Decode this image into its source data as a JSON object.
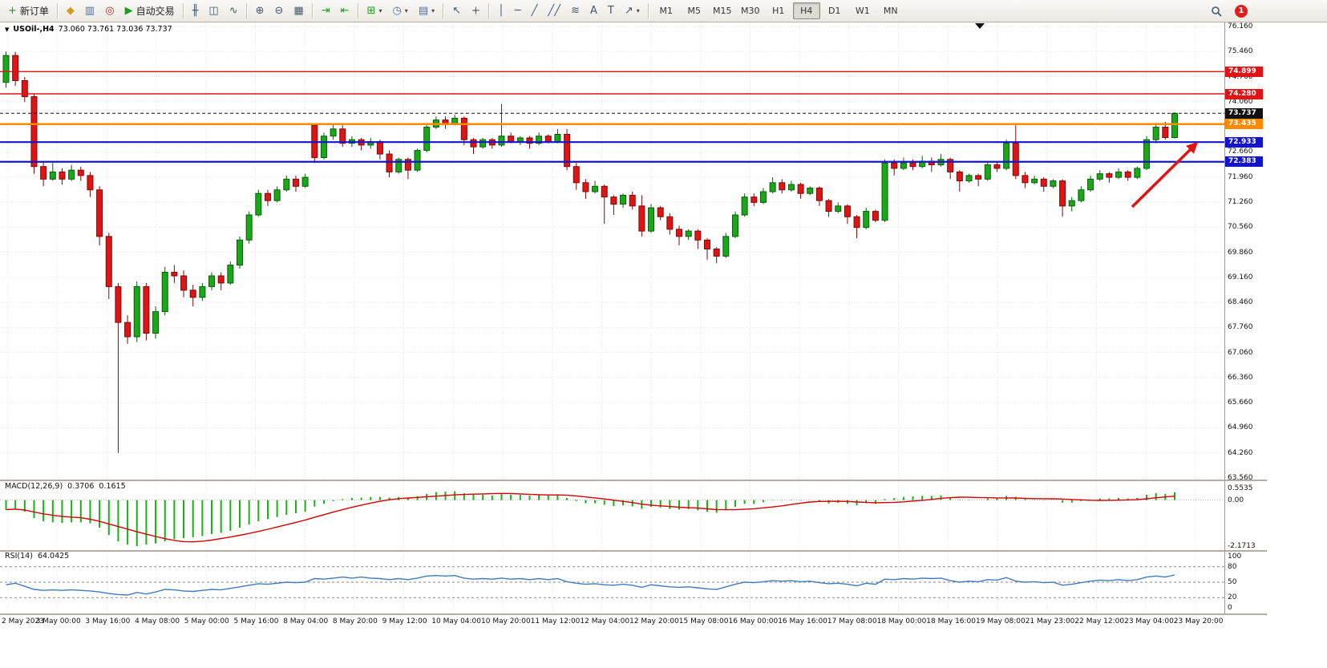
{
  "toolbar": {
    "groups": [
      {
        "items": [
          {
            "name": "new-order-button",
            "glyph": "+",
            "glyph_color": "#1f9d1f",
            "label": "新订单"
          }
        ]
      },
      {
        "items": [
          {
            "name": "market-watch-button",
            "glyph": "◆",
            "glyph_color": "#d49a1a"
          },
          {
            "name": "data-window-button",
            "glyph": "▥",
            "glyph_color": "#4a6fa5"
          },
          {
            "name": "signals-button",
            "glyph": "◎",
            "glyph_color": "#b03030"
          },
          {
            "name": "autotrading-button",
            "glyph": "▶",
            "glyph_color": "#1f9d1f",
            "label": "自动交易"
          }
        ]
      },
      {
        "items": [
          {
            "name": "ohlc-bars-button",
            "glyph": "╫"
          },
          {
            "name": "candlestick-button",
            "glyph": "◫"
          },
          {
            "name": "line-chart-button",
            "glyph": "∿"
          }
        ]
      },
      {
        "items": [
          {
            "name": "zoom-in-button",
            "glyph": "⊕"
          },
          {
            "name": "zoom-out-button",
            "glyph": "⊖"
          },
          {
            "name": "tile-windows-button",
            "glyph": "▦"
          }
        ]
      },
      {
        "items": [
          {
            "name": "auto-scroll-button",
            "glyph": "⇥",
            "glyph_color": "#1f9d1f"
          },
          {
            "name": "chart-shift-button",
            "glyph": "⇤",
            "glyph_color": "#1f9d1f"
          }
        ]
      },
      {
        "items": [
          {
            "name": "indicators-button",
            "glyph": "⊞",
            "glyph_color": "#1f9d1f",
            "caret": "▾"
          },
          {
            "name": "periods-button",
            "glyph": "◷",
            "glyph_color": "#4a6fa5",
            "caret": "▾"
          },
          {
            "name": "templates-button",
            "glyph": "▤",
            "glyph_color": "#4a6fa5",
            "caret": "▾"
          }
        ]
      },
      {
        "items": [
          {
            "name": "cursor-button",
            "glyph": "↖"
          },
          {
            "name": "crosshair-button",
            "glyph": "+"
          }
        ]
      },
      {
        "items": [
          {
            "name": "vertical-line-button",
            "glyph": "│"
          },
          {
            "name": "horizontal-line-button",
            "glyph": "─"
          },
          {
            "name": "trendline-button",
            "glyph": "╱"
          },
          {
            "name": "channel-button",
            "glyph": "╱╱"
          },
          {
            "name": "fibonacci-button",
            "glyph": "≋"
          },
          {
            "name": "text-button",
            "glyph": "A"
          },
          {
            "name": "label-button",
            "glyph": "T"
          },
          {
            "name": "shapes-button",
            "glyph": "↗",
            "caret": "▾"
          }
        ]
      }
    ],
    "timeframes": [
      "M1",
      "M5",
      "M15",
      "M30",
      "H1",
      "H4",
      "D1",
      "W1",
      "MN"
    ],
    "active_timeframe": "H4",
    "notification_count": "1"
  },
  "chart": {
    "expander_glyph": "▼",
    "symbol_header": "USOil-,H4",
    "ohlc_readout": "73.060 73.761 73.036 73.737",
    "price_axis": [
      "76.160",
      "75.460",
      "74.760",
      "74.060",
      "73.360",
      "72.660",
      "71.960",
      "71.260",
      "70.560",
      "69.860",
      "69.160",
      "68.460",
      "67.760",
      "67.060",
      "66.360",
      "65.660",
      "64.960",
      "64.260",
      "63.560"
    ],
    "time_axis": [
      "2 May 2023",
      "3 May 00:00",
      "3 May 16:00",
      "4 May 08:00",
      "5 May 00:00",
      "5 May 16:00",
      "8 May 04:00",
      "8 May 20:00",
      "9 May 12:00",
      "10 May 04:00",
      "10 May 20:00",
      "11 May 12:00",
      "12 May 04:00",
      "12 May 20:00",
      "15 May 08:00",
      "16 May 00:00",
      "16 May 16:00",
      "17 May 08:00",
      "18 May 00:00",
      "18 May 16:00",
      "19 May 08:00",
      "21 May 23:00",
      "22 May 12:00",
      "23 May 04:00",
      "23 May 20:00"
    ],
    "levels": [
      {
        "name": "resistance-line-74899",
        "label": "74.899",
        "value": 74.899,
        "color": "#e01414",
        "width": 1.4,
        "style": "solid"
      },
      {
        "name": "resistance-line-74280",
        "label": "74.280",
        "value": 74.28,
        "color": "#e01414",
        "width": 1.4,
        "style": "solid"
      },
      {
        "name": "bid-price-line",
        "label": "73.737",
        "value": 73.737,
        "color": "#111111",
        "width": 1,
        "style": "dash"
      },
      {
        "name": "pivot-line-73435",
        "label": "73.435",
        "value": 73.435,
        "color": "#ff8a00",
        "width": 2.4,
        "style": "solid"
      },
      {
        "name": "support-line-72933",
        "label": "72.933",
        "value": 72.933,
        "color": "#1414cc",
        "width": 2.2,
        "style": "solid"
      },
      {
        "name": "support-line-72383",
        "label": "72.383",
        "value": 72.383,
        "color": "#1414cc",
        "width": 2.2,
        "style": "solid"
      }
    ]
  },
  "macd": {
    "label": "MACD(12,26,9)",
    "value_main": "0.3706",
    "value_signal": "0.1615",
    "axis": [
      "0.5535",
      "0.00",
      "-2.1713"
    ],
    "axis_values": [
      0.5535,
      0,
      -2.1713
    ]
  },
  "rsi": {
    "label": "RSI(14)",
    "value": "64.0425",
    "axis": [
      "100",
      "80",
      "50",
      "20",
      "0"
    ],
    "axis_values": [
      100,
      80,
      50,
      20,
      0
    ],
    "levels": [
      80,
      50,
      20
    ]
  },
  "colors": {
    "bull": "#18a818",
    "bear": "#e01414",
    "bull_border": "#0b5e0b",
    "bear_border": "#7e0a0a",
    "grid": "#e4e4e4",
    "macd_hist": "#16b216",
    "macd_signal": "#d40000",
    "rsi_line": "#3f7cbe",
    "arrow": "#e01414",
    "axis_border": "#9a9a9a"
  },
  "chart_data": {
    "type": "candlestick",
    "symbol": "USOil",
    "timeframe": "H4",
    "title": "USOil-,H4",
    "current_bar": {
      "open": 73.06,
      "high": 73.761,
      "low": 73.036,
      "close": 73.737
    },
    "ylim": [
      63.56,
      76.16
    ],
    "candles": [
      [
        74.6,
        75.46,
        74.45,
        75.35
      ],
      [
        75.35,
        75.45,
        74.5,
        74.65
      ],
      [
        74.65,
        74.75,
        74.05,
        74.2
      ],
      [
        74.2,
        74.3,
        72.05,
        72.25
      ],
      [
        72.25,
        72.4,
        71.7,
        71.9
      ],
      [
        71.9,
        72.35,
        71.85,
        72.1
      ],
      [
        72.1,
        72.2,
        71.75,
        71.9
      ],
      [
        71.9,
        72.3,
        71.85,
        72.15
      ],
      [
        72.15,
        72.25,
        71.85,
        72.0
      ],
      [
        72.0,
        72.1,
        71.4,
        71.6
      ],
      [
        71.6,
        71.7,
        70.05,
        70.3
      ],
      [
        70.3,
        70.4,
        68.55,
        68.9
      ],
      [
        68.9,
        69.0,
        64.26,
        67.9
      ],
      [
        67.9,
        68.1,
        67.3,
        67.5
      ],
      [
        67.5,
        69.05,
        67.35,
        68.9
      ],
      [
        68.9,
        69.0,
        67.4,
        67.6
      ],
      [
        67.6,
        68.35,
        67.45,
        68.2
      ],
      [
        68.2,
        69.45,
        68.1,
        69.3
      ],
      [
        69.3,
        69.5,
        69.0,
        69.2
      ],
      [
        69.2,
        69.35,
        68.6,
        68.8
      ],
      [
        68.8,
        68.95,
        68.35,
        68.6
      ],
      [
        68.6,
        69.0,
        68.5,
        68.9
      ],
      [
        68.9,
        69.3,
        68.8,
        69.2
      ],
      [
        69.2,
        69.3,
        68.8,
        69.0
      ],
      [
        69.0,
        69.6,
        68.95,
        69.5
      ],
      [
        69.5,
        70.3,
        69.4,
        70.2
      ],
      [
        70.2,
        71.0,
        70.1,
        70.9
      ],
      [
        70.9,
        71.6,
        70.85,
        71.5
      ],
      [
        71.5,
        71.6,
        71.15,
        71.3
      ],
      [
        71.3,
        71.7,
        71.25,
        71.6
      ],
      [
        71.6,
        72.0,
        71.55,
        71.9
      ],
      [
        71.9,
        72.0,
        71.55,
        71.7
      ],
      [
        71.7,
        72.05,
        71.65,
        71.95
      ],
      [
        73.4,
        73.45,
        72.35,
        72.5
      ],
      [
        72.5,
        73.2,
        72.45,
        73.1
      ],
      [
        73.1,
        73.45,
        73.0,
        73.3
      ],
      [
        73.3,
        73.4,
        72.8,
        72.9
      ],
      [
        72.9,
        73.1,
        72.8,
        73.0
      ],
      [
        73.0,
        73.05,
        72.7,
        72.85
      ],
      [
        72.85,
        73.05,
        72.75,
        72.95
      ],
      [
        72.95,
        73.0,
        72.45,
        72.6
      ],
      [
        72.6,
        72.7,
        71.95,
        72.1
      ],
      [
        72.1,
        72.5,
        72.05,
        72.45
      ],
      [
        72.45,
        72.5,
        71.9,
        72.15
      ],
      [
        72.15,
        72.75,
        72.1,
        72.7
      ],
      [
        72.7,
        73.45,
        72.65,
        73.35
      ],
      [
        73.35,
        73.65,
        73.3,
        73.55
      ],
      [
        73.55,
        73.65,
        73.3,
        73.45
      ],
      [
        73.45,
        73.7,
        73.4,
        73.6
      ],
      [
        73.6,
        73.65,
        72.85,
        73.0
      ],
      [
        73.0,
        73.05,
        72.6,
        72.8
      ],
      [
        72.8,
        73.05,
        72.75,
        73.0
      ],
      [
        73.0,
        73.05,
        72.75,
        72.85
      ],
      [
        72.85,
        74.0,
        72.8,
        73.1
      ],
      [
        73.1,
        73.2,
        72.9,
        72.95
      ],
      [
        72.95,
        73.1,
        72.85,
        73.05
      ],
      [
        73.05,
        73.1,
        72.75,
        72.9
      ],
      [
        72.9,
        73.2,
        72.85,
        73.1
      ],
      [
        73.1,
        73.15,
        72.9,
        72.95
      ],
      [
        72.95,
        73.3,
        72.9,
        73.15
      ],
      [
        73.15,
        73.3,
        72.15,
        72.25
      ],
      [
        72.25,
        72.35,
        71.6,
        71.8
      ],
      [
        71.8,
        71.9,
        71.35,
        71.55
      ],
      [
        71.55,
        71.85,
        71.5,
        71.7
      ],
      [
        71.7,
        71.75,
        70.65,
        71.4
      ],
      [
        71.4,
        71.45,
        70.9,
        71.2
      ],
      [
        71.2,
        71.5,
        71.1,
        71.45
      ],
      [
        71.45,
        71.55,
        71.05,
        71.15
      ],
      [
        71.15,
        71.45,
        70.3,
        70.45
      ],
      [
        70.45,
        71.2,
        70.4,
        71.1
      ],
      [
        71.1,
        71.15,
        70.75,
        70.85
      ],
      [
        70.85,
        70.95,
        70.35,
        70.5
      ],
      [
        70.5,
        70.6,
        70.05,
        70.3
      ],
      [
        70.3,
        70.5,
        70.2,
        70.45
      ],
      [
        70.45,
        70.5,
        69.95,
        70.2
      ],
      [
        70.2,
        70.25,
        69.65,
        69.95
      ],
      [
        69.95,
        70.0,
        69.55,
        69.75
      ],
      [
        69.75,
        70.4,
        69.7,
        70.3
      ],
      [
        70.3,
        71.0,
        70.25,
        70.9
      ],
      [
        70.9,
        71.5,
        70.85,
        71.4
      ],
      [
        71.4,
        71.5,
        71.15,
        71.25
      ],
      [
        71.25,
        71.65,
        71.2,
        71.55
      ],
      [
        71.55,
        71.95,
        71.5,
        71.8
      ],
      [
        71.8,
        71.9,
        71.5,
        71.6
      ],
      [
        71.6,
        71.85,
        71.55,
        71.75
      ],
      [
        71.75,
        71.8,
        71.35,
        71.5
      ],
      [
        71.5,
        71.7,
        71.45,
        71.65
      ],
      [
        71.65,
        71.7,
        71.15,
        71.3
      ],
      [
        71.3,
        71.35,
        70.85,
        71.0
      ],
      [
        71.0,
        71.25,
        70.95,
        71.15
      ],
      [
        71.15,
        71.2,
        70.65,
        70.85
      ],
      [
        70.85,
        70.9,
        70.25,
        70.55
      ],
      [
        70.55,
        71.1,
        70.5,
        71.0
      ],
      [
        71.0,
        71.05,
        70.7,
        70.75
      ],
      [
        70.75,
        72.45,
        70.7,
        72.35
      ],
      [
        72.35,
        72.45,
        72.0,
        72.2
      ],
      [
        72.2,
        72.5,
        72.15,
        72.35
      ],
      [
        72.35,
        72.45,
        72.15,
        72.25
      ],
      [
        72.25,
        72.55,
        72.2,
        72.4
      ],
      [
        72.4,
        72.5,
        72.1,
        72.3
      ],
      [
        72.3,
        72.6,
        72.25,
        72.45
      ],
      [
        72.45,
        72.5,
        71.9,
        72.1
      ],
      [
        72.1,
        72.15,
        71.55,
        71.85
      ],
      [
        71.85,
        72.05,
        71.8,
        72.0
      ],
      [
        72.0,
        72.05,
        71.7,
        71.9
      ],
      [
        71.9,
        72.4,
        71.85,
        72.3
      ],
      [
        72.3,
        72.4,
        72.1,
        72.2
      ],
      [
        72.2,
        73.0,
        72.15,
        72.9
      ],
      [
        72.9,
        73.4,
        71.9,
        72.0
      ],
      [
        72.0,
        72.1,
        71.65,
        71.8
      ],
      [
        71.8,
        72.0,
        71.75,
        71.9
      ],
      [
        71.9,
        71.95,
        71.55,
        71.7
      ],
      [
        71.7,
        71.9,
        71.65,
        71.85
      ],
      [
        71.85,
        71.9,
        70.85,
        71.15
      ],
      [
        71.15,
        71.4,
        71.0,
        71.3
      ],
      [
        71.3,
        71.7,
        71.25,
        71.6
      ],
      [
        71.6,
        72.0,
        71.55,
        71.9
      ],
      [
        71.9,
        72.15,
        71.85,
        72.05
      ],
      [
        72.05,
        72.1,
        71.8,
        71.95
      ],
      [
        71.95,
        72.2,
        71.9,
        72.1
      ],
      [
        72.1,
        72.15,
        71.85,
        71.95
      ],
      [
        71.95,
        72.25,
        71.9,
        72.2
      ],
      [
        72.2,
        73.1,
        72.15,
        73.0
      ],
      [
        73.0,
        73.45,
        72.9,
        73.35
      ],
      [
        73.35,
        73.5,
        73.0,
        73.06
      ],
      [
        73.06,
        73.761,
        73.036,
        73.737
      ]
    ],
    "macd": {
      "scale": [
        -2.1713,
        0.5535
      ],
      "signal_period": 9,
      "histogram": [
        -0.45,
        -0.4,
        -0.55,
        -0.85,
        -1.0,
        -1.05,
        -1.08,
        -1.05,
        -1.05,
        -1.1,
        -1.3,
        -1.65,
        -1.95,
        -2.1,
        -2.1713,
        -2.1,
        -2.05,
        -1.95,
        -1.85,
        -1.8,
        -1.75,
        -1.7,
        -1.6,
        -1.55,
        -1.45,
        -1.3,
        -1.15,
        -1.0,
        -0.9,
        -0.8,
        -0.7,
        -0.62,
        -0.55,
        -0.3,
        -0.18,
        -0.05,
        0.05,
        0.1,
        0.12,
        0.15,
        0.15,
        0.12,
        0.15,
        0.12,
        0.18,
        0.3,
        0.38,
        0.4,
        0.42,
        0.32,
        0.25,
        0.25,
        0.22,
        0.28,
        0.25,
        0.25,
        0.22,
        0.25,
        0.22,
        0.25,
        0.1,
        -0.05,
        -0.15,
        -0.15,
        -0.22,
        -0.28,
        -0.25,
        -0.3,
        -0.42,
        -0.32,
        -0.35,
        -0.42,
        -0.45,
        -0.42,
        -0.48,
        -0.55,
        -0.6,
        -0.48,
        -0.32,
        -0.18,
        -0.18,
        -0.1,
        -0.02,
        -0.02,
        0.02,
        -0.02,
        0.0,
        -0.08,
        -0.15,
        -0.12,
        -0.18,
        -0.25,
        -0.15,
        -0.18,
        0.05,
        0.1,
        0.15,
        0.17,
        0.2,
        0.2,
        0.22,
        0.12,
        0.02,
        0.02,
        0.0,
        0.08,
        0.08,
        0.2,
        0.15,
        0.05,
        0.02,
        -0.02,
        0.0,
        -0.12,
        -0.12,
        -0.05,
        0.02,
        0.08,
        0.08,
        0.1,
        0.08,
        0.1,
        0.25,
        0.33,
        0.3,
        0.3706
      ]
    },
    "rsi": {
      "period": 14,
      "last": 64.0425,
      "values": [
        45,
        48,
        42,
        36,
        34,
        35,
        34,
        35,
        34,
        33,
        31,
        28,
        26,
        25,
        30,
        27,
        31,
        36,
        35,
        33,
        32,
        34,
        36,
        35,
        38,
        41,
        44,
        47,
        46,
        48,
        50,
        49,
        50,
        57,
        56,
        58,
        60,
        58,
        60,
        58,
        57,
        55,
        57,
        55,
        58,
        62,
        63,
        62,
        63,
        58,
        56,
        57,
        56,
        58,
        56,
        57,
        55,
        57,
        55,
        57,
        51,
        48,
        46,
        47,
        45,
        44,
        46,
        44,
        40,
        45,
        43,
        41,
        40,
        41,
        39,
        37,
        36,
        41,
        46,
        50,
        49,
        51,
        53,
        52,
        53,
        51,
        52,
        49,
        47,
        48,
        46,
        43,
        48,
        46,
        56,
        55,
        57,
        56,
        58,
        57,
        58,
        53,
        50,
        52,
        51,
        55,
        54,
        59,
        52,
        50,
        51,
        49,
        50,
        44,
        46,
        49,
        52,
        54,
        53,
        55,
        53,
        55,
        60,
        62,
        60,
        64.0425
      ]
    }
  }
}
